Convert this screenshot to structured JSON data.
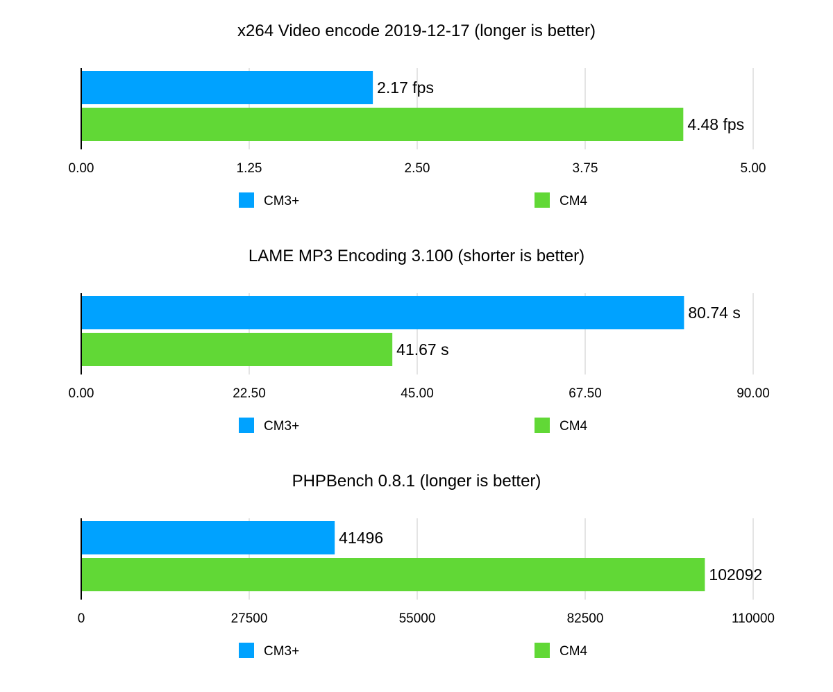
{
  "chart_data": [
    {
      "type": "bar",
      "orientation": "horizontal",
      "title": "x264 Video encode 2019-12-17 (longer is better)",
      "xlabel": "",
      "ylabel": "",
      "xlim": [
        0,
        5
      ],
      "ticks": [
        "0.00",
        "1.25",
        "2.50",
        "3.75",
        "5.00"
      ],
      "tick_values": [
        0,
        1.25,
        2.5,
        3.75,
        5
      ],
      "grid": true,
      "legend_position": "bottom",
      "series": [
        {
          "name": "CM3+",
          "color": "#00a2ff",
          "value": 2.17,
          "label": "2.17 fps"
        },
        {
          "name": "CM4",
          "color": "#61d836",
          "value": 4.48,
          "label": "4.48 fps"
        }
      ]
    },
    {
      "type": "bar",
      "orientation": "horizontal",
      "title": "LAME MP3 Encoding 3.100 (shorter is better)",
      "xlabel": "",
      "ylabel": "",
      "xlim": [
        0,
        90
      ],
      "ticks": [
        "0.00",
        "22.50",
        "45.00",
        "67.50",
        "90.00"
      ],
      "tick_values": [
        0,
        22.5,
        45,
        67.5,
        90
      ],
      "grid": true,
      "legend_position": "bottom",
      "series": [
        {
          "name": "CM3+",
          "color": "#00a2ff",
          "value": 80.74,
          "label": "80.74 s"
        },
        {
          "name": "CM4",
          "color": "#61d836",
          "value": 41.67,
          "label": "41.67 s"
        }
      ]
    },
    {
      "type": "bar",
      "orientation": "horizontal",
      "title": "PHPBench 0.8.1 (longer is better)",
      "xlabel": "",
      "ylabel": "",
      "xlim": [
        0,
        110000
      ],
      "ticks": [
        "0",
        "27500",
        "55000",
        "82500",
        "110000"
      ],
      "tick_values": [
        0,
        27500,
        55000,
        82500,
        110000
      ],
      "grid": true,
      "legend_position": "bottom",
      "series": [
        {
          "name": "CM3+",
          "color": "#00a2ff",
          "value": 41496,
          "label": "41496"
        },
        {
          "name": "CM4",
          "color": "#61d836",
          "value": 102092,
          "label": "102092"
        }
      ]
    }
  ]
}
